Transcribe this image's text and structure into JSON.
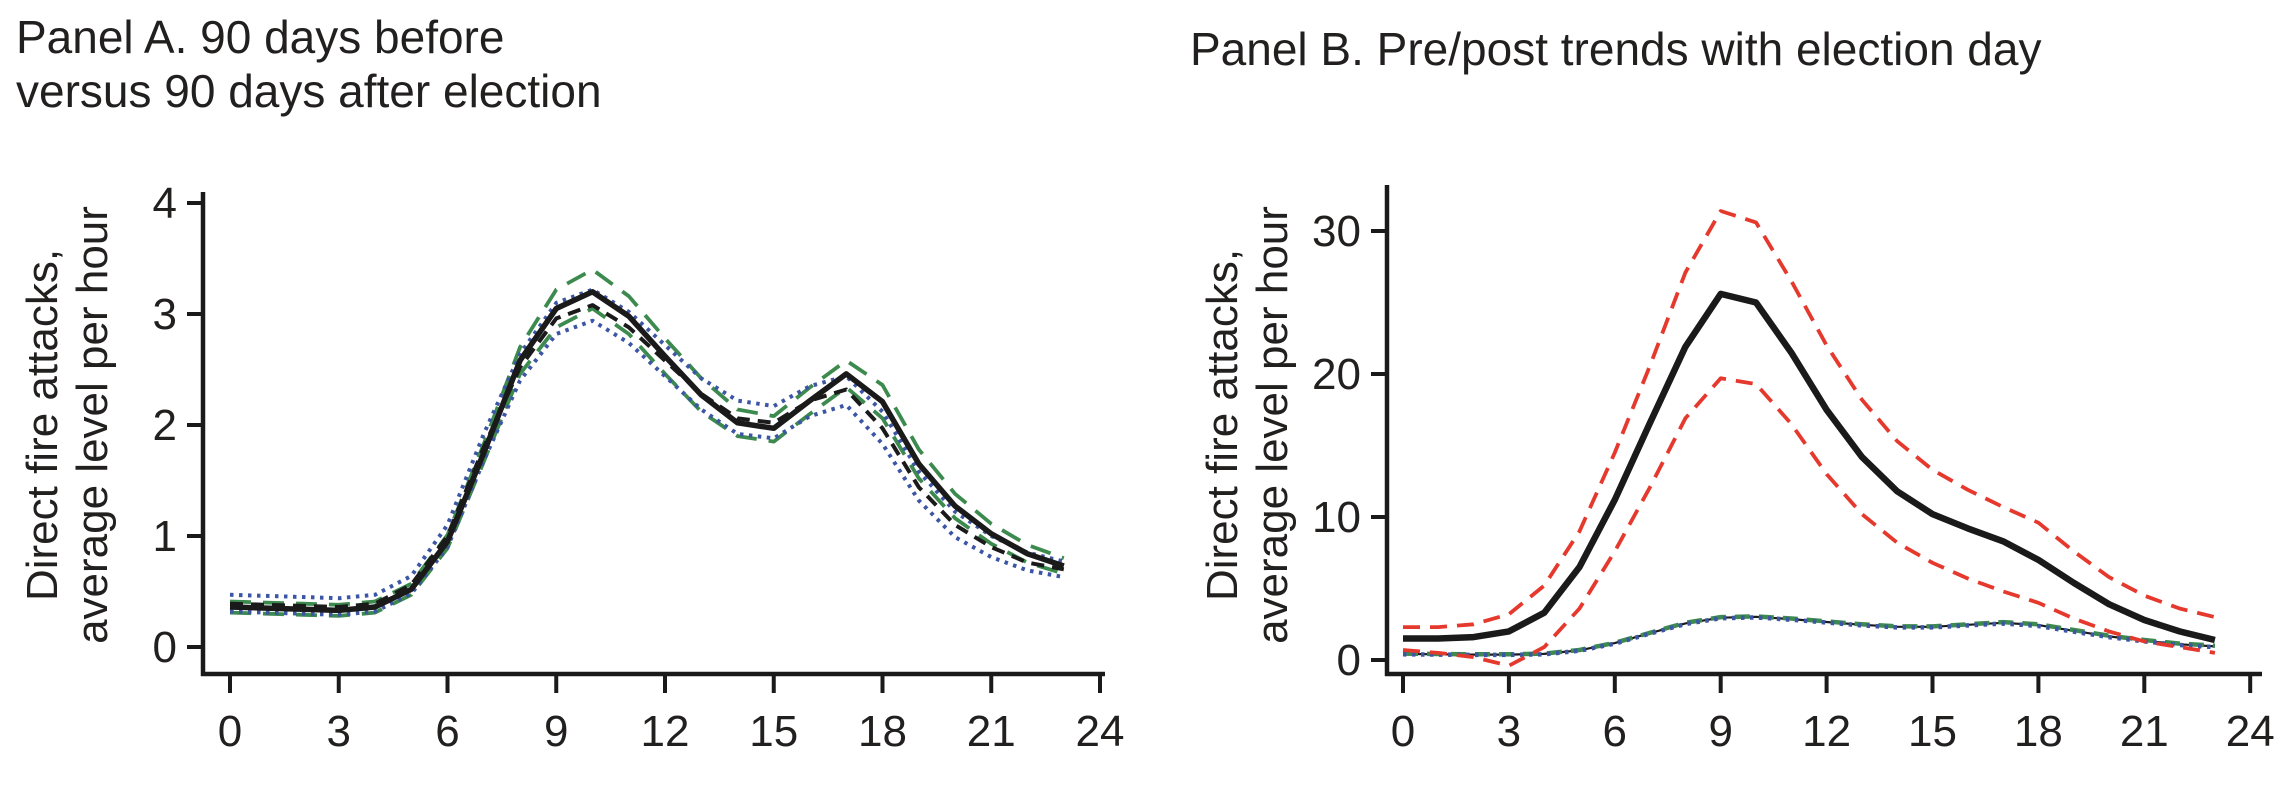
{
  "panels": [
    {
      "title_line1": "Panel A. 90 days before",
      "title_line2": "versus 90 days after election",
      "ylabel_line1": "Direct fire attacks,",
      "ylabel_line2": "average level per hour"
    },
    {
      "title_line1": "Panel B. Pre/post trends with election day",
      "ylabel_line1": "Direct fire attacks,",
      "ylabel_line2": "average level per hour"
    }
  ],
  "colors": {
    "black": "#1a1a1a",
    "green": "#3c8a4d",
    "blue": "#3d55a5",
    "red": "#e6392d",
    "text": "#221f1f"
  },
  "chart_data": [
    {
      "panel": "A",
      "type": "line",
      "title": "Panel A. 90 days before versus 90 days after election",
      "ylabel": "Direct fire attacks, average level per hour",
      "xlabel": "",
      "xlim": [
        0,
        24
      ],
      "ylim": [
        0,
        4
      ],
      "xticks": [
        0,
        3,
        6,
        9,
        12,
        15,
        18,
        21,
        24
      ],
      "yticks": [
        0,
        1,
        2,
        3,
        4
      ],
      "grid": false,
      "legend": "none",
      "x": [
        0,
        1,
        2,
        3,
        4,
        5,
        6,
        7,
        8,
        9,
        10,
        11,
        12,
        13,
        14,
        15,
        16,
        17,
        18,
        19,
        20,
        21,
        22,
        23
      ],
      "series": [
        {
          "name": "ci-upper-green-longdash",
          "color": "#3c8a4d",
          "style": "longdash",
          "width": 3.8,
          "values": [
            0.41,
            0.4,
            0.39,
            0.38,
            0.41,
            0.57,
            1.01,
            1.83,
            2.7,
            3.22,
            3.4,
            3.16,
            2.78,
            2.42,
            2.14,
            2.08,
            2.34,
            2.58,
            2.36,
            1.78,
            1.38,
            1.11,
            0.92,
            0.8
          ]
        },
        {
          "name": "ci-lower-green-longdash",
          "color": "#3c8a4d",
          "style": "longdash",
          "width": 3.8,
          "values": [
            0.31,
            0.3,
            0.29,
            0.28,
            0.31,
            0.47,
            0.89,
            1.67,
            2.46,
            2.88,
            3.05,
            2.82,
            2.46,
            2.12,
            1.9,
            1.85,
            2.1,
            2.34,
            2.06,
            1.52,
            1.16,
            0.93,
            0.76,
            0.66
          ]
        },
        {
          "name": "ci-upper-blue-dotted",
          "color": "#3d55a5",
          "style": "dot",
          "width": 4.0,
          "values": [
            0.47,
            0.46,
            0.45,
            0.44,
            0.47,
            0.64,
            1.1,
            1.92,
            2.64,
            3.1,
            3.22,
            3.02,
            2.72,
            2.42,
            2.22,
            2.17,
            2.35,
            2.44,
            2.12,
            1.58,
            1.22,
            1.0,
            0.85,
            0.77
          ]
        },
        {
          "name": "ci-lower-blue-dotted",
          "color": "#3d55a5",
          "style": "dot",
          "width": 4.0,
          "values": [
            0.32,
            0.31,
            0.3,
            0.29,
            0.32,
            0.48,
            0.9,
            1.68,
            2.4,
            2.82,
            2.94,
            2.74,
            2.44,
            2.14,
            1.92,
            1.88,
            2.08,
            2.18,
            1.83,
            1.32,
            0.99,
            0.81,
            0.69,
            0.63
          ]
        },
        {
          "name": "mean-black-dashed",
          "color": "#1a1a1a",
          "style": "dash",
          "width": 4.0,
          "values": [
            0.39,
            0.38,
            0.37,
            0.36,
            0.39,
            0.56,
            1.0,
            1.8,
            2.52,
            2.96,
            3.08,
            2.88,
            2.58,
            2.28,
            2.06,
            2.02,
            2.22,
            2.32,
            1.97,
            1.44,
            1.1,
            0.9,
            0.76,
            0.7
          ]
        },
        {
          "name": "mean-black-solid",
          "color": "#1a1a1a",
          "style": "solid",
          "width": 5.5,
          "values": [
            0.36,
            0.35,
            0.34,
            0.33,
            0.36,
            0.52,
            0.95,
            1.75,
            2.58,
            3.05,
            3.2,
            2.98,
            2.62,
            2.27,
            2.02,
            1.97,
            2.22,
            2.46,
            2.21,
            1.65,
            1.27,
            1.02,
            0.84,
            0.73
          ]
        }
      ]
    },
    {
      "panel": "B",
      "type": "line",
      "title": "Panel B. Pre/post trends with election day",
      "ylabel": "Direct fire attacks, average level per hour",
      "xlabel": "",
      "xlim": [
        0,
        24
      ],
      "ylim": [
        0,
        33
      ],
      "xticks": [
        0,
        3,
        6,
        9,
        12,
        15,
        18,
        21,
        24
      ],
      "yticks": [
        0,
        10,
        20,
        30
      ],
      "grid": false,
      "legend": "none",
      "x": [
        0,
        1,
        2,
        3,
        4,
        5,
        6,
        7,
        8,
        9,
        10,
        11,
        12,
        13,
        14,
        15,
        16,
        17,
        18,
        19,
        20,
        21,
        22,
        23
      ],
      "series": [
        {
          "name": "pretrend-dark-thin",
          "color": "#1a1a1a",
          "style": "solid",
          "width": 2.2,
          "values": [
            0.43,
            0.4,
            0.38,
            0.38,
            0.43,
            0.68,
            1.18,
            1.88,
            2.56,
            2.96,
            3.02,
            2.86,
            2.66,
            2.46,
            2.32,
            2.32,
            2.46,
            2.6,
            2.44,
            2.04,
            1.65,
            1.35,
            1.1,
            0.95
          ]
        },
        {
          "name": "pretrend-green-longdash",
          "color": "#3c8a4d",
          "style": "middash",
          "width": 4.5,
          "values": [
            0.45,
            0.42,
            0.4,
            0.4,
            0.45,
            0.7,
            1.2,
            1.9,
            2.6,
            3.0,
            3.05,
            2.9,
            2.7,
            2.5,
            2.35,
            2.35,
            2.5,
            2.65,
            2.5,
            2.1,
            1.7,
            1.4,
            1.15,
            1.0
          ]
        },
        {
          "name": "pretrend-blue-dotted",
          "color": "#3d55a5",
          "style": "dot",
          "width": 4.5,
          "values": [
            0.4,
            0.38,
            0.36,
            0.36,
            0.4,
            0.65,
            1.15,
            1.85,
            2.52,
            2.92,
            2.98,
            2.82,
            2.62,
            2.42,
            2.28,
            2.28,
            2.42,
            2.55,
            2.38,
            1.98,
            1.6,
            1.3,
            1.05,
            0.9
          ]
        },
        {
          "name": "electionday-ci-upper-red-dashed",
          "color": "#e6392d",
          "style": "reddash",
          "width": 3.8,
          "values": [
            2.3,
            2.3,
            2.5,
            3.2,
            5.2,
            9.0,
            14.5,
            20.6,
            27.1,
            31.4,
            30.6,
            26.5,
            22.0,
            18.2,
            15.3,
            13.3,
            11.9,
            10.7,
            9.6,
            7.6,
            5.8,
            4.5,
            3.6,
            3.0
          ]
        },
        {
          "name": "electionday-ci-lower-red-dashed",
          "color": "#e6392d",
          "style": "reddash",
          "width": 3.8,
          "values": [
            0.7,
            0.5,
            0.2,
            -0.4,
            0.9,
            3.6,
            7.6,
            12.1,
            16.9,
            19.7,
            19.3,
            16.5,
            13.0,
            10.2,
            8.2,
            6.8,
            5.7,
            4.8,
            4.0,
            2.9,
            2.0,
            1.3,
            0.9,
            0.5
          ]
        },
        {
          "name": "electionday-mean-black-solid",
          "color": "#1a1a1a",
          "style": "solid",
          "width": 6.5,
          "values": [
            1.5,
            1.5,
            1.6,
            2.0,
            3.3,
            6.5,
            11.2,
            16.6,
            21.9,
            25.6,
            25.0,
            21.5,
            17.5,
            14.2,
            11.8,
            10.2,
            9.2,
            8.3,
            7.0,
            5.4,
            3.9,
            2.8,
            2.0,
            1.4
          ]
        }
      ]
    }
  ]
}
